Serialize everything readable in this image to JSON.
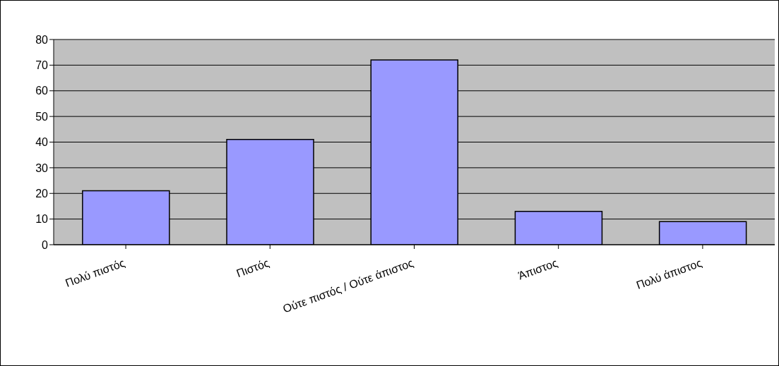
{
  "chart_data": {
    "type": "bar",
    "categories": [
      "Πολύ πιστός",
      "Πιστός",
      "Ούτε πιστός / Ούτε άπιστος",
      "Άπιστος",
      "Πολύ άπιστος"
    ],
    "values": [
      21,
      41,
      72,
      13,
      9
    ],
    "color": "#9999ff",
    "ylim": [
      0,
      80
    ],
    "yticks": [
      0,
      10,
      20,
      30,
      40,
      50,
      60,
      70,
      80
    ],
    "grid": "y",
    "legend": false
  }
}
